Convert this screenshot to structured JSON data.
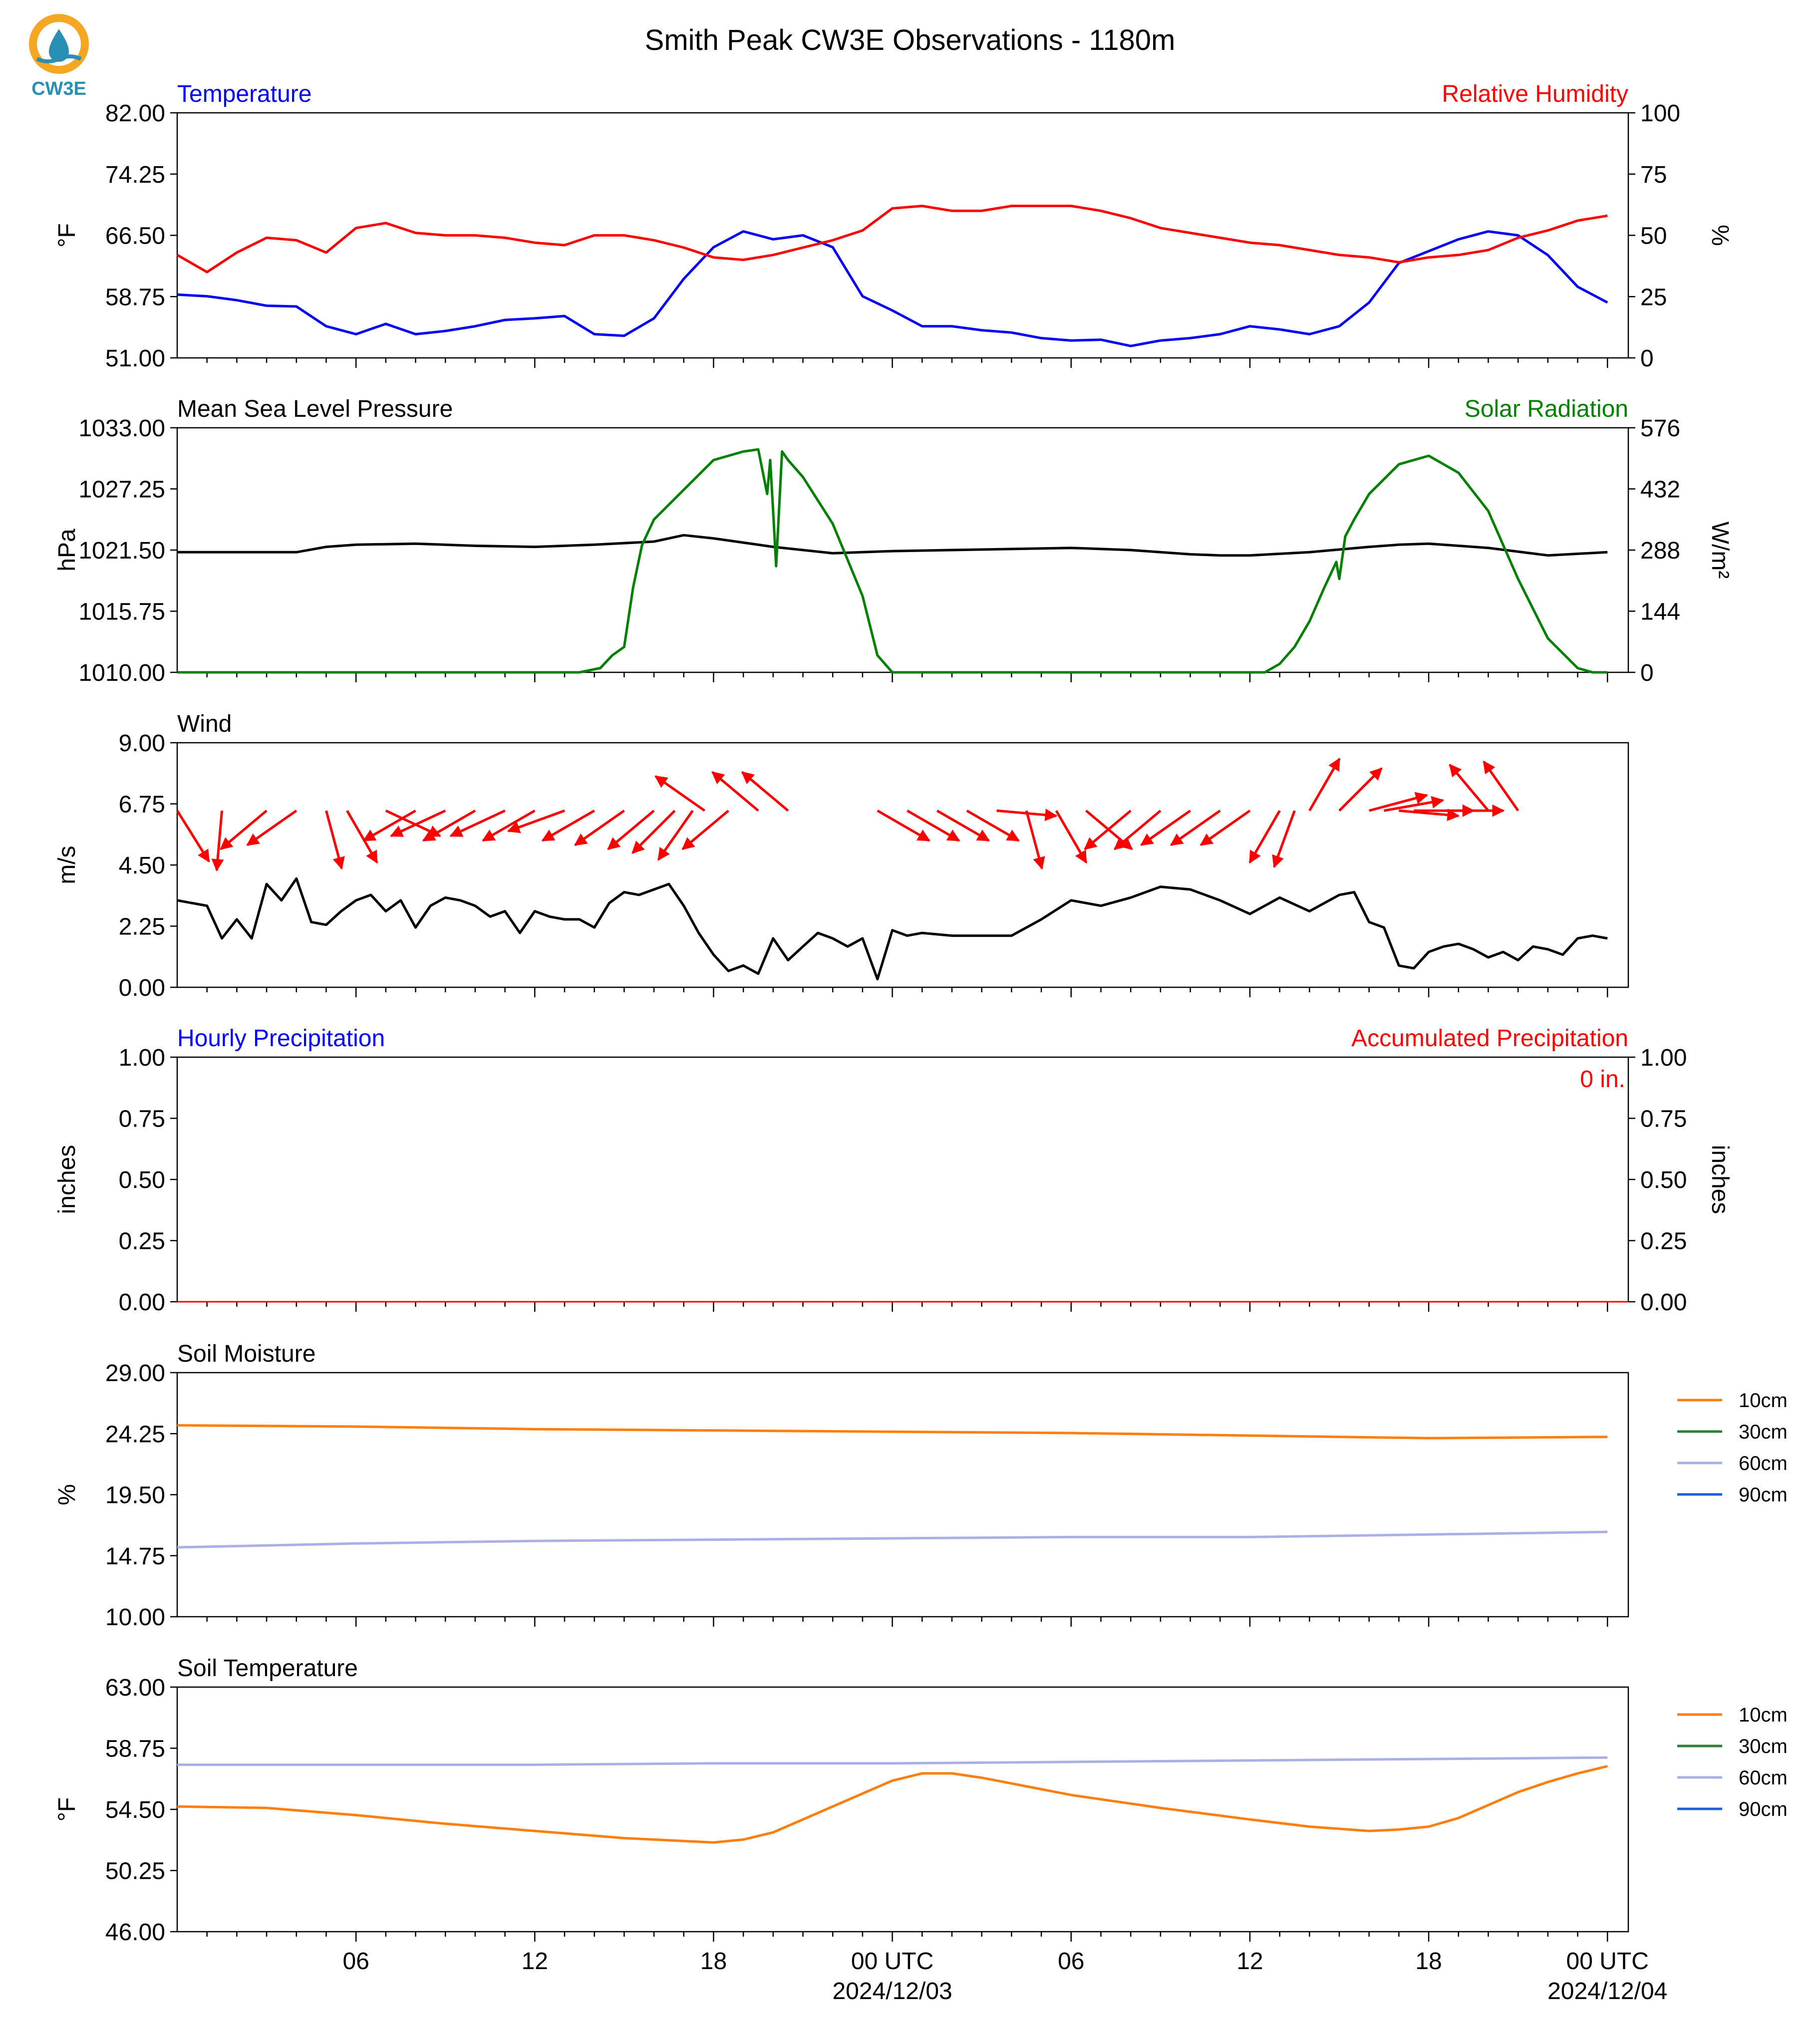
{
  "page": {
    "title": "Smith Peak CW3E Observations - 1180m",
    "logo_text": "CW3E",
    "date_labels": [
      "2024/12/03",
      "2024/12/04"
    ],
    "x_tick_labels": [
      "06",
      "12",
      "18",
      "00 UTC",
      "06",
      "12",
      "18",
      "00 UTC"
    ]
  },
  "colors": {
    "temperature": "#0000ff",
    "humidity": "#ff0000",
    "pressure": "#000000",
    "solar": "#008000",
    "wind_speed": "#000000",
    "wind_arrows": "#ff0000",
    "precip_hourly": "#0000ff",
    "precip_accum": "#ff0000",
    "soil_10cm": "#ff7f0e",
    "soil_30cm": "#2e7d32",
    "soil_60cm": "#aab0e6",
    "soil_90cm": "#1f5ce0",
    "logo": "#f5a623",
    "logo_water": "#2a8fb5"
  },
  "chart_data": [
    {
      "id": "temp_rh",
      "type": "line",
      "title_left": "Temperature",
      "title_right": "Relative Humidity",
      "ylabel_left": "°F",
      "ylabel_right": "%",
      "ylim_left": [
        51,
        82
      ],
      "ylim_right": [
        0,
        100
      ],
      "yticks_left": [
        "82.00",
        "74.25",
        "66.50",
        "58.75",
        "51.00"
      ],
      "yticks_right": [
        "100",
        "75",
        "50",
        "25",
        "0"
      ],
      "series": [
        {
          "name": "Temperature",
          "axis": "left",
          "color_key": "temperature",
          "x": [
            0,
            1,
            2,
            3,
            4,
            5,
            6,
            7,
            8,
            9,
            10,
            11,
            12,
            13,
            14,
            15,
            16,
            17,
            18,
            19,
            20,
            21,
            22,
            23,
            24,
            25,
            26,
            27,
            28,
            29,
            30,
            31,
            32,
            33,
            34,
            35,
            36,
            37,
            38,
            39,
            40,
            41,
            42,
            43,
            44,
            45,
            46,
            47,
            48
          ],
          "y": [
            59,
            58.8,
            58.3,
            57.6,
            57.5,
            55,
            54,
            55.3,
            54,
            54.4,
            55,
            55.8,
            56,
            56.3,
            54,
            53.8,
            56,
            61,
            65,
            67,
            66,
            66.5,
            65,
            58.8,
            57,
            55,
            55,
            54.5,
            54.2,
            53.5,
            53.2,
            53.3,
            52.5,
            53.2,
            53.5,
            54,
            55,
            54.6,
            54,
            55,
            58,
            63,
            64.5,
            66,
            67,
            66.5,
            64,
            60,
            58
          ]
        },
        {
          "name": "Relative Humidity",
          "axis": "right",
          "color_key": "humidity",
          "x": [
            0,
            1,
            2,
            3,
            4,
            5,
            6,
            7,
            8,
            9,
            10,
            11,
            12,
            13,
            14,
            15,
            16,
            17,
            18,
            19,
            20,
            21,
            22,
            23,
            24,
            25,
            26,
            27,
            28,
            29,
            30,
            31,
            32,
            33,
            34,
            35,
            36,
            37,
            38,
            39,
            40,
            41,
            42,
            43,
            44,
            45,
            46,
            47,
            48
          ],
          "y": [
            42,
            35,
            43,
            49,
            48,
            43,
            53,
            55,
            51,
            50,
            50,
            49,
            47,
            46,
            50,
            50,
            48,
            45,
            41,
            40,
            42,
            45,
            48,
            52,
            61,
            62,
            60,
            60,
            62,
            62,
            62,
            60,
            57,
            53,
            51,
            49,
            47,
            46,
            44,
            42,
            41,
            39,
            41,
            42,
            44,
            49,
            52,
            56,
            58
          ]
        }
      ]
    },
    {
      "id": "pressure_solar",
      "type": "line",
      "title_left": "Mean Sea Level Pressure",
      "title_right": "Solar Radiation",
      "ylabel_left": "hPa",
      "ylabel_right": "W/m²",
      "ylim_left": [
        1010,
        1033
      ],
      "ylim_right": [
        0,
        576
      ],
      "yticks_left": [
        "1033.00",
        "1027.25",
        "1021.50",
        "1015.75",
        "1010.00"
      ],
      "yticks_right": [
        "576",
        "432",
        "288",
        "144",
        "0"
      ],
      "series": [
        {
          "name": "Mean Sea Level Pressure",
          "axis": "left",
          "color_key": "pressure",
          "x": [
            0,
            2,
            4,
            5,
            6,
            8,
            10,
            12,
            14,
            16,
            17,
            18,
            20,
            21,
            22,
            24,
            26,
            28,
            30,
            32,
            34,
            35,
            36,
            38,
            40,
            41,
            42,
            44,
            46,
            48
          ],
          "y": [
            1021.3,
            1021.3,
            1021.3,
            1021.8,
            1022,
            1022.1,
            1021.9,
            1021.8,
            1022,
            1022.3,
            1022.9,
            1022.6,
            1021.8,
            1021.5,
            1021.2,
            1021.4,
            1021.5,
            1021.6,
            1021.7,
            1021.5,
            1021.1,
            1021,
            1021,
            1021.3,
            1021.8,
            1022,
            1022.1,
            1021.7,
            1021,
            1021.3
          ]
        },
        {
          "name": "Solar Radiation",
          "axis": "right",
          "color_key": "solar",
          "x": [
            0,
            5,
            10,
            13.5,
            14.2,
            14.6,
            15,
            15.3,
            15.6,
            16,
            17,
            18,
            19,
            19.5,
            19.8,
            19.9,
            20,
            20.1,
            20.3,
            20.5,
            21,
            22,
            23,
            23.5,
            24,
            30,
            35,
            36.5,
            37,
            37.5,
            38,
            38.5,
            38.9,
            39,
            39.2,
            39.5,
            40,
            41,
            42,
            43,
            44,
            45,
            46,
            47,
            47.5,
            48
          ],
          "y": [
            0,
            0,
            0,
            0,
            10,
            40,
            60,
            200,
            300,
            360,
            430,
            500,
            520,
            525,
            420,
            500,
            380,
            250,
            520,
            500,
            460,
            350,
            180,
            40,
            0,
            0,
            0,
            0,
            20,
            60,
            120,
            200,
            260,
            220,
            320,
            360,
            420,
            490,
            510,
            470,
            380,
            220,
            80,
            10,
            0,
            0
          ]
        }
      ]
    },
    {
      "id": "wind",
      "type": "line",
      "title_left": "Wind",
      "ylabel_left": "m/s",
      "ylim_left": [
        0,
        9
      ],
      "yticks_left": [
        "9.00",
        "6.75",
        "4.50",
        "2.25",
        "0.00"
      ],
      "series": [
        {
          "name": "Wind",
          "axis": "left",
          "color_key": "wind_speed",
          "x": [
            0,
            1,
            1.5,
            2,
            2.5,
            3,
            3.5,
            4,
            4.5,
            5,
            5.5,
            6,
            6.5,
            7,
            7.5,
            8,
            8.5,
            9,
            9.5,
            10,
            10.5,
            11,
            11.5,
            12,
            12.5,
            13,
            13.5,
            14,
            14.5,
            15,
            15.5,
            16,
            16.5,
            17,
            17.5,
            18,
            18.5,
            19,
            19.5,
            20,
            20.5,
            21,
            21.5,
            22,
            22.5,
            23,
            23.5,
            24,
            24.5,
            25,
            26,
            27,
            28,
            29,
            30,
            31,
            32,
            33,
            34,
            35,
            36,
            37,
            38,
            39,
            39.5,
            40,
            40.5,
            41,
            41.5,
            42,
            42.5,
            43,
            43.5,
            44,
            44.5,
            45,
            45.5,
            46,
            46.5,
            47,
            47.5,
            48
          ],
          "y": [
            3.2,
            3,
            1.8,
            2.5,
            1.8,
            3.8,
            3.2,
            4,
            2.4,
            2.3,
            2.8,
            3.2,
            3.4,
            2.8,
            3.2,
            2.2,
            3,
            3.3,
            3.2,
            3,
            2.6,
            2.8,
            2,
            2.8,
            2.6,
            2.5,
            2.5,
            2.2,
            3.1,
            3.5,
            3.4,
            3.6,
            3.8,
            3,
            2,
            1.2,
            0.6,
            0.8,
            0.5,
            1.8,
            1,
            1.5,
            2,
            1.8,
            1.5,
            1.8,
            0.3,
            2.1,
            1.9,
            2,
            1.9,
            1.9,
            1.9,
            2.5,
            3.2,
            3,
            3.3,
            3.7,
            3.6,
            3.2,
            2.7,
            3.3,
            2.8,
            3.4,
            3.5,
            2.4,
            2.2,
            0.8,
            0.7,
            1.3,
            1.5,
            1.6,
            1.4,
            1.1,
            1.3,
            1,
            1.5,
            1.4,
            1.2,
            1.8,
            1.9,
            1.8
          ]
        }
      ],
      "arrows": {
        "hours": [
          0,
          1.5,
          3,
          4,
          5,
          5.7,
          7,
          8,
          9,
          10,
          11,
          12,
          13,
          14,
          15,
          16,
          16.7,
          17.3,
          17.7,
          18.5,
          19.5,
          20.5,
          23.5,
          24.5,
          25.5,
          26.5,
          27.5,
          28.5,
          29.5,
          30.5,
          32,
          33,
          34,
          35,
          36,
          37,
          37.5,
          38,
          39,
          40,
          40.5,
          41,
          41.5,
          42.5,
          44,
          45
        ],
        "directions_deg": [
          148,
          185,
          230,
          235,
          165,
          150,
          115,
          240,
          245,
          240,
          245,
          240,
          250,
          240,
          235,
          230,
          225,
          215,
          305,
          230,
          310,
          310,
          120,
          120,
          120,
          120,
          95,
          165,
          150,
          130,
          230,
          230,
          235,
          235,
          235,
          210,
          200,
          30,
          45,
          75,
          80,
          95,
          90,
          90,
          320,
          325
        ]
      }
    },
    {
      "id": "precipitation",
      "type": "bar",
      "title_left": "Hourly Precipitation",
      "title_right": "Accumulated Precipitation",
      "ylabel_left": "inches",
      "ylabel_right": "inches",
      "ylim_left": [
        0,
        1
      ],
      "ylim_right": [
        0,
        1
      ],
      "yticks_left": [
        "1.00",
        "0.75",
        "0.50",
        "0.25",
        "0.00"
      ],
      "yticks_right": [
        "1.00",
        "0.75",
        "0.50",
        "0.25",
        "0.00"
      ],
      "annotation": "0 in.",
      "series": []
    },
    {
      "id": "soil_moisture",
      "type": "line",
      "title_left": "Soil Moisture",
      "ylabel_left": "%",
      "ylim_left": [
        10,
        29
      ],
      "yticks_left": [
        "29.00",
        "24.25",
        "19.50",
        "14.75",
        "10.00"
      ],
      "legend": [
        "10cm",
        "30cm",
        "60cm",
        "90cm"
      ],
      "series": [
        {
          "name": "10cm",
          "color_key": "soil_10cm",
          "x": [
            0,
            6,
            12,
            18,
            24,
            30,
            36,
            42,
            48
          ],
          "y": [
            24.9,
            24.8,
            24.6,
            24.5,
            24.4,
            24.3,
            24.1,
            23.9,
            24.0
          ]
        },
        {
          "name": "60cm",
          "color_key": "soil_60cm",
          "x": [
            0,
            6,
            12,
            18,
            24,
            30,
            36,
            42,
            48
          ],
          "y": [
            15.4,
            15.7,
            15.9,
            16.0,
            16.1,
            16.2,
            16.2,
            16.4,
            16.6
          ]
        }
      ]
    },
    {
      "id": "soil_temperature",
      "type": "line",
      "title_left": "Soil Temperature",
      "ylabel_left": "°F",
      "ylim_left": [
        46,
        63
      ],
      "yticks_left": [
        "63.00",
        "58.75",
        "54.50",
        "50.25",
        "46.00"
      ],
      "legend": [
        "10cm",
        "30cm",
        "60cm",
        "90cm"
      ],
      "series": [
        {
          "name": "10cm",
          "color_key": "soil_10cm",
          "x": [
            0,
            3,
            6,
            9,
            12,
            15,
            18,
            19,
            20,
            21,
            22,
            23,
            24,
            25,
            26,
            27,
            28,
            30,
            33,
            36,
            38,
            40,
            41,
            42,
            43,
            44,
            45,
            46,
            47,
            48
          ],
          "y": [
            54.7,
            54.6,
            54.1,
            53.5,
            53.0,
            52.5,
            52.2,
            52.4,
            52.9,
            53.8,
            54.7,
            55.6,
            56.5,
            57.0,
            57.0,
            56.7,
            56.3,
            55.5,
            54.6,
            53.8,
            53.3,
            53.0,
            53.1,
            53.3,
            53.9,
            54.8,
            55.7,
            56.4,
            57.0,
            57.5
          ]
        },
        {
          "name": "60cm",
          "color_key": "soil_60cm",
          "x": [
            0,
            6,
            12,
            18,
            24,
            30,
            36,
            42,
            48
          ],
          "y": [
            57.6,
            57.6,
            57.6,
            57.7,
            57.7,
            57.8,
            57.9,
            58.0,
            58.1
          ]
        }
      ]
    }
  ]
}
